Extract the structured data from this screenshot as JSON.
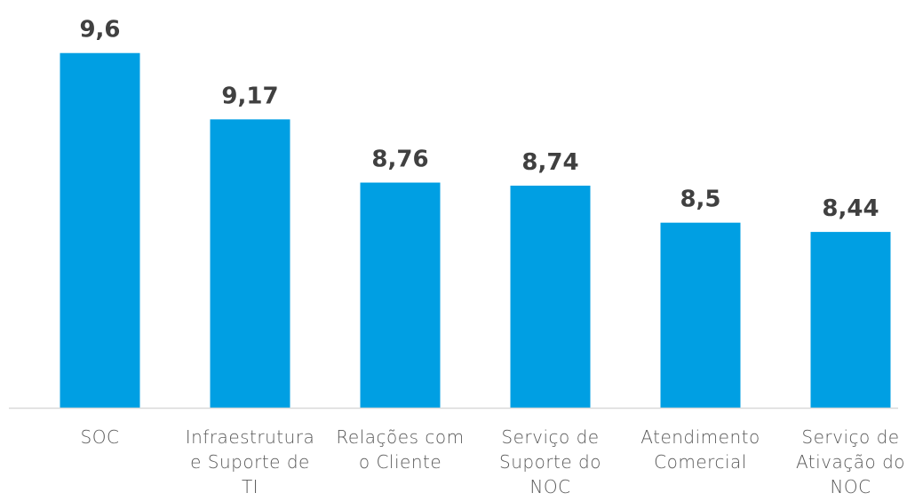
{
  "chart_data": {
    "type": "bar",
    "categories": [
      "SOC",
      "Infraestrutura e Suporte de TI",
      "Relações com o Cliente",
      "Serviço de Suporte do NOC",
      "Atendimento Comercial",
      "Serviço de Ativação do NOC"
    ],
    "values": [
      9.6,
      9.17,
      8.76,
      8.74,
      8.5,
      8.44
    ],
    "value_labels": [
      "9,6",
      "9,17",
      "8,76",
      "8,74",
      "8,5",
      "8,44"
    ],
    "color": "#009fe3",
    "ylim": [
      7.3,
      9.8
    ]
  }
}
